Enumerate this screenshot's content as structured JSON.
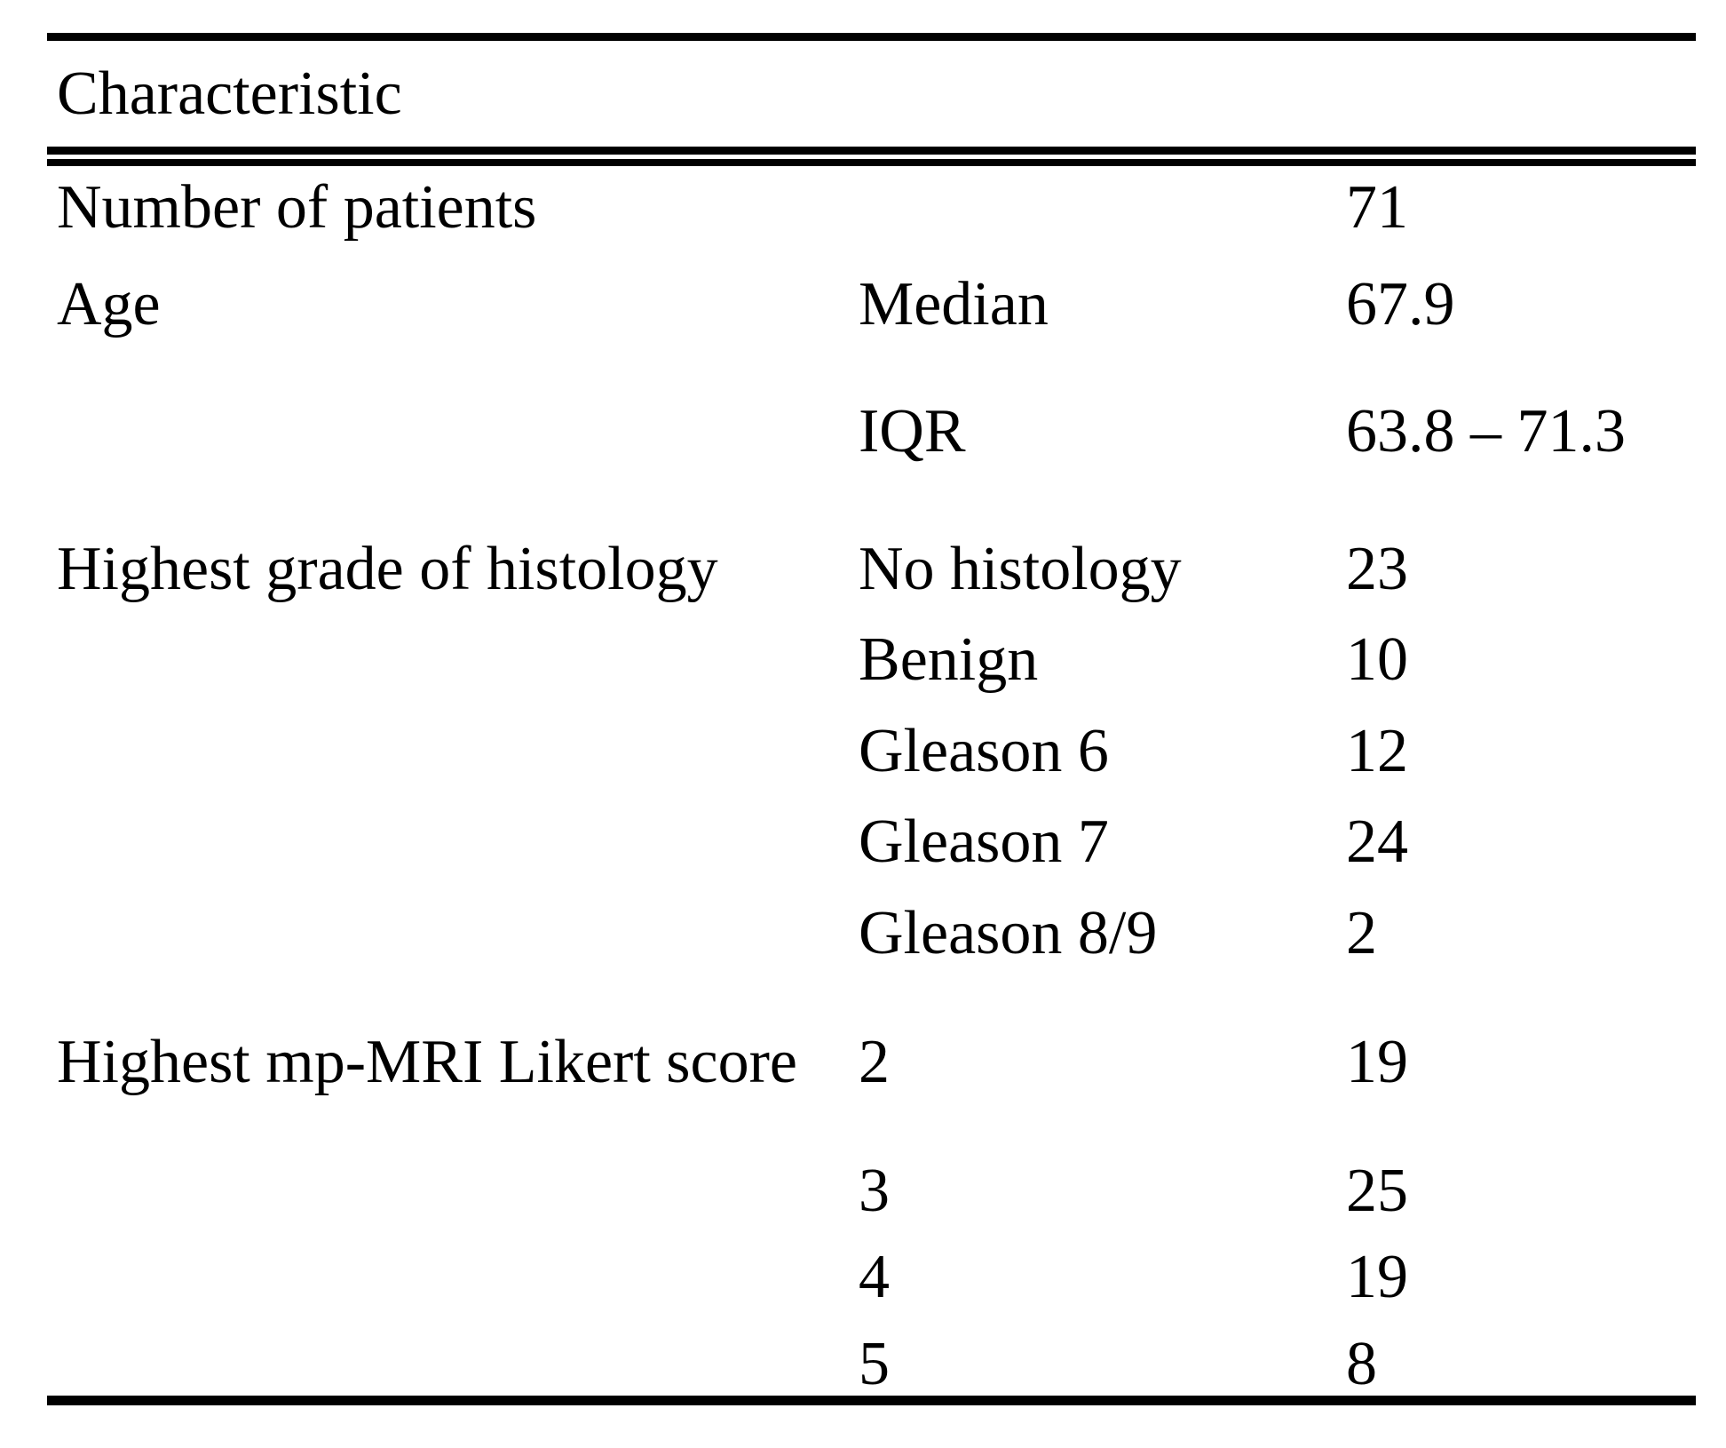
{
  "colors": {
    "text": "#000000",
    "background": "#ffffff",
    "rule": "#000000"
  },
  "table": {
    "header": "Characteristic",
    "columns": [
      "characteristic",
      "subcategory",
      "value"
    ],
    "rows": [
      {
        "characteristic": "Number of patients",
        "subcategory": "",
        "value": "71"
      },
      {
        "characteristic": "Age",
        "subcategory": "Median",
        "value": "67.9"
      },
      {
        "characteristic": "",
        "subcategory": "IQR",
        "value": "63.8 – 71.3"
      },
      {
        "characteristic": "Highest grade of histology",
        "subcategory": "No histology",
        "value": "23"
      },
      {
        "characteristic": "",
        "subcategory": "Benign",
        "value": "10"
      },
      {
        "characteristic": "",
        "subcategory": "Gleason 6",
        "value": "12"
      },
      {
        "characteristic": "",
        "subcategory": "Gleason 7",
        "value": "24"
      },
      {
        "characteristic": "",
        "subcategory": "Gleason 8/9",
        "value": "2"
      },
      {
        "characteristic": "Highest mp-MRI Likert score",
        "subcategory": "2",
        "value": "19"
      },
      {
        "characteristic": "",
        "subcategory": "3",
        "value": "25"
      },
      {
        "characteristic": "",
        "subcategory": "4",
        "value": "19"
      },
      {
        "characteristic": "",
        "subcategory": "5",
        "value": "8"
      }
    ]
  }
}
